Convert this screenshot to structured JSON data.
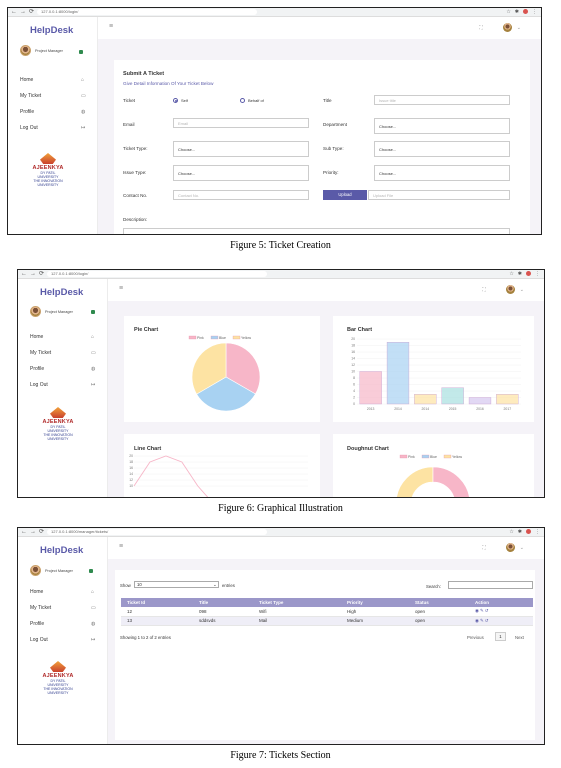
{
  "common": {
    "brand": "HelpDesk",
    "role": "Project Manager",
    "menu": [
      "Home",
      "My Ticket",
      "Profile",
      "Log Out"
    ],
    "logo_name": "AJEENKYA",
    "logo_sub1": "DY PATIL UNIVERSITY",
    "logo_sub2": "THE INNOVATION",
    "logo_sub3": "UNIVERSITY",
    "accent": "#5a5aa8"
  },
  "fig5": {
    "url": "127.0.0.1:8000/login/",
    "caption": "Figure 5: Ticket Creation",
    "form_title": "Submit A Ticket",
    "form_subtitle": "Give Detail Information Of Your Ticket Below",
    "ticket_label": "Ticket",
    "self_label": "Self",
    "behalf_label": "Behalf of",
    "title_label": "Title",
    "title_placeholder": "Issue title",
    "email_label": "Email",
    "email_placeholder": "Email",
    "department_label": "Department",
    "department_value": "Choose...",
    "ticket_type_label": "Ticket Type:",
    "ticket_type_value": "Choose...",
    "sub_type_label": "Sub Type:",
    "sub_type_value": "Choose...",
    "issue_type_label": "Issue Type:",
    "issue_type_value": "Choose...",
    "priority_label": "Priority:",
    "priority_value": "Choose...",
    "contact_label": "Contact No.",
    "contact_placeholder": "Contact No.",
    "upload_button": "Upload",
    "upload_placeholder": "Upload File",
    "description_label": "Description:"
  },
  "fig6": {
    "url": "127.0.0.1:8000/login/",
    "caption": "Figure 6: Graphical Illustration",
    "pie_title": "Pie Chart",
    "bar_title": "Bar Chart",
    "line_title": "Line Chart",
    "doughnut_title": "Doughnut Chart"
  },
  "chart_data": [
    {
      "type": "pie",
      "title": "Pie Chart",
      "categories": [
        "Pink",
        "Blue",
        "Yellow"
      ],
      "values": [
        33.3,
        33.3,
        33.4
      ],
      "colors": [
        "#f7b6c8",
        "#a8d2f2",
        "#fde3a3"
      ],
      "legend": "top"
    },
    {
      "type": "bar",
      "title": "Bar Chart",
      "categories": [
        "2013",
        "2014",
        "2014",
        "2015",
        "2016",
        "2017"
      ],
      "values": [
        10,
        19,
        3,
        5,
        2,
        3
      ],
      "colors": [
        "#f7b6c8",
        "#a8d2f2",
        "#fde3a3",
        "#a8e0e0",
        "#d5c8f0",
        "#fde3a3"
      ],
      "ylim": [
        0,
        20
      ],
      "yticks": [
        0,
        2,
        4,
        6,
        8,
        10,
        12,
        14,
        16,
        18,
        20
      ],
      "grid": true
    },
    {
      "type": "line",
      "title": "Line Chart",
      "x": [
        0,
        1,
        2,
        3,
        4,
        5,
        6
      ],
      "values": [
        10,
        18,
        20,
        18,
        10,
        4,
        0
      ],
      "ylim": [
        0,
        20
      ],
      "yticks": [
        20,
        18,
        16,
        14,
        12,
        10
      ],
      "color": "#f7b6c8",
      "grid": true
    },
    {
      "type": "doughnut",
      "title": "Doughnut Chart",
      "categories": [
        "Pink",
        "Blue",
        "Yellow"
      ],
      "colors": [
        "#f7b6c8",
        "#a8d2f2",
        "#fde3a3"
      ],
      "legend": "top"
    }
  ],
  "fig7": {
    "url": "127.0.0.1:8000/manager/tickets/",
    "caption": "Figure 7: Tickets Section",
    "show_label": "Show",
    "entries_value": "10",
    "entries_label": "entries",
    "search_label": "Search:",
    "columns": [
      "Ticket Id",
      "Title",
      "Ticket Type",
      "Priority",
      "Status",
      "Action"
    ],
    "rows": [
      {
        "id": "12",
        "title": "098",
        "type": "Wifi",
        "priority": "High",
        "status": "open"
      },
      {
        "id": "13",
        "title": "sddsvds",
        "type": "Mail",
        "priority": "Medium",
        "status": "open"
      }
    ],
    "info": "Showing 1 to 2 of 2 entries",
    "previous": "Previous",
    "page": "1",
    "next": "Next"
  }
}
